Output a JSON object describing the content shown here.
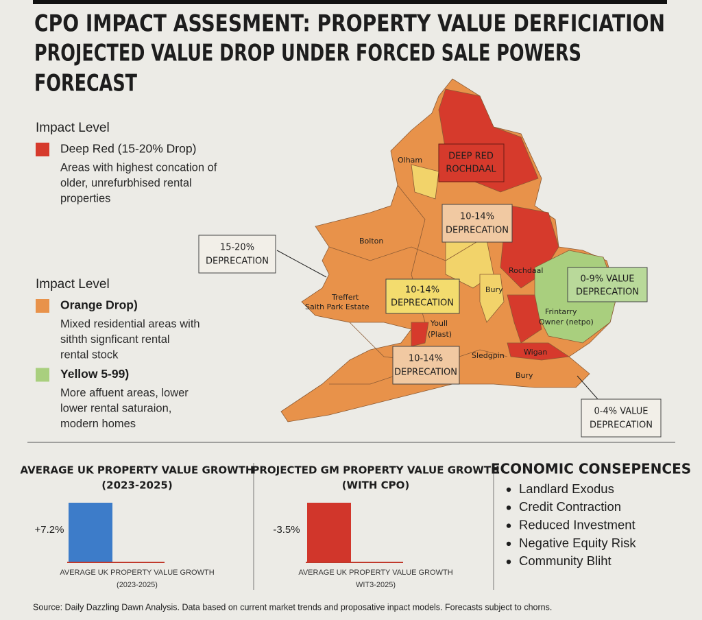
{
  "header": {
    "title_lines": [
      "CPO IMPACT ASSESMENT: PROPERTY VALUE DERFICIATION",
      "PROJECTED VALUE DROP UNDER FORCED SALE POWERS",
      "FORECAST"
    ]
  },
  "legend": {
    "sections": [
      {
        "heading": "Impact Level",
        "items": [
          {
            "label": "Deep Red (15-20% Drop)",
            "color": "#d63a2c",
            "description": [
              "Areas with highest concation of",
              "older, unrefurbhised rental",
              "properties"
            ]
          }
        ]
      },
      {
        "heading": "Impact Level",
        "items": [
          {
            "label": "Orange Drop)",
            "color": "#e8924a",
            "description": [
              "Mixed residential areas with",
              "sithth signficant rental",
              "rental stock"
            ]
          },
          {
            "label": "Yellow 5-99)",
            "color": "#a9cf7e",
            "description": [
              "More affuent areas, lower",
              "lower rental saturaion,",
              "modern homes"
            ]
          }
        ]
      }
    ]
  },
  "map": {
    "place_labels": [
      "Olham",
      "Bolton",
      "Treffert",
      "Saith Park Estate",
      "Rochdaal",
      "Bury",
      "Frintarry",
      "Owner (netpo)",
      "Youll",
      "(Plast)",
      "Sledgpin",
      "Wigan",
      "Bury"
    ],
    "callouts": [
      [
        "DEEP RED",
        "ROCHDAAL"
      ],
      [
        "10-14%",
        "DEPRECATION"
      ],
      [
        "15-20%",
        "DEPRECATION"
      ],
      [
        "10-14%",
        "DEPRECATION"
      ],
      [
        "0-9% VALUE",
        "DEPRECATION"
      ],
      [
        "10-14%",
        "DEPRECATION"
      ],
      [
        "0-4% VALUE",
        "DEPRECATION"
      ]
    ]
  },
  "chart_data": [
    {
      "type": "bar",
      "title": "AVERAGE UK PROPERTY VALUE GROWTH",
      "subtitle": "(2023-2025)",
      "categories": [
        null
      ],
      "values": [
        7.2
      ],
      "value_labels": [
        "+7.2%"
      ],
      "color": "#3d7cc9",
      "xlabel": [
        "AVERAGE UK PROPERTY VALUE GROWTH",
        "(2023-2025)"
      ]
    },
    {
      "type": "bar",
      "title": "PROJECTED GM PROPERTY VALUE GROWTH",
      "subtitle": "(WITH CPO)",
      "categories": [
        null
      ],
      "values": [
        -3.5
      ],
      "value_labels": [
        "-3.5%"
      ],
      "color": "#d1362b",
      "xlabel": [
        "AVERAGE UK PROPERTY VALUE GROWTH",
        "WIT3-2025)"
      ]
    }
  ],
  "consequences": {
    "title": "ECONOMIC CONSEPENCES",
    "items": [
      "Landlard Exodus",
      "Credit Contraction",
      "Reduced Investment",
      "Negative Equity Risk",
      "Community Bliht"
    ]
  },
  "footer": {
    "source": "Source: Daily Dazzling Dawn Analysis. Data based on current market trends and proposative inpact models. Forecasts subject to chorns."
  }
}
